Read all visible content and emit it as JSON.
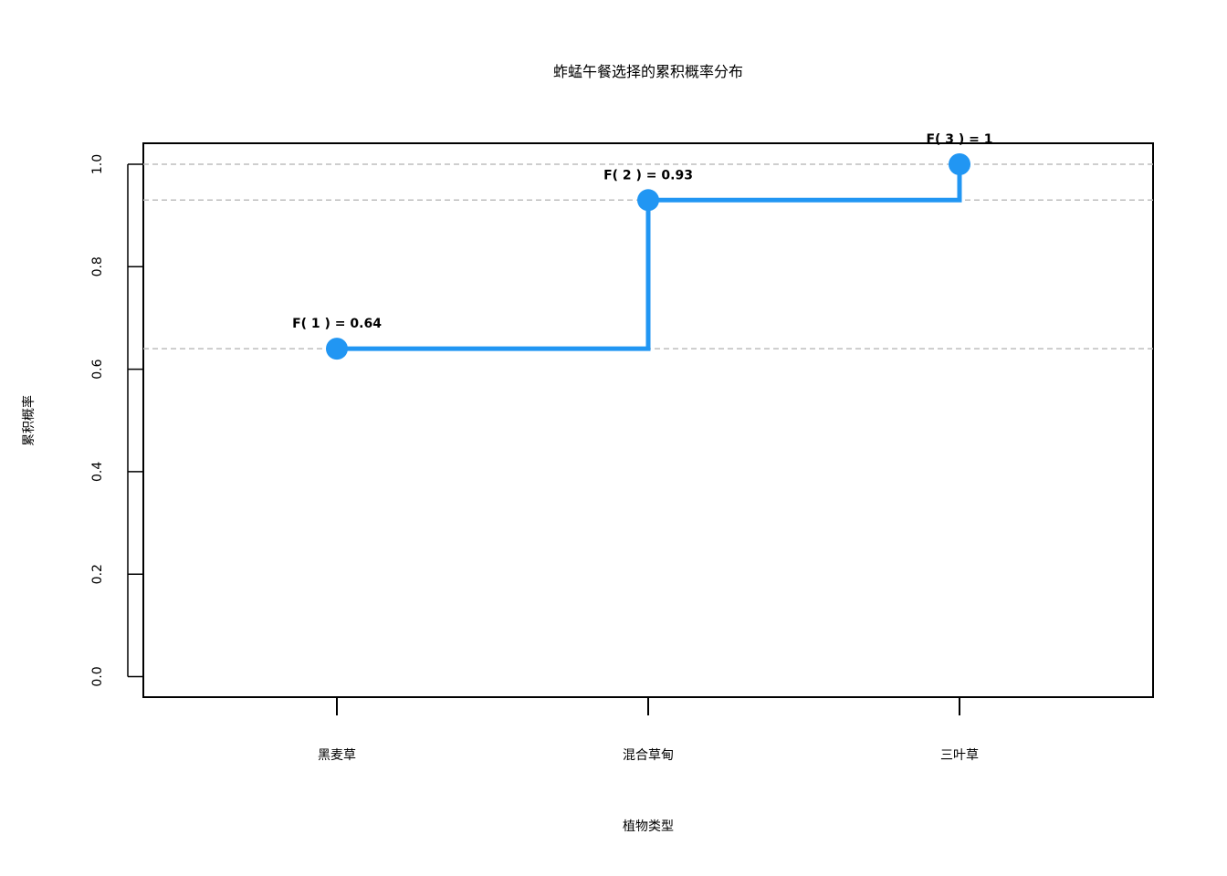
{
  "chart_data": {
    "type": "line",
    "subtype": "step-cdf",
    "title": "蚱蜢午餐选择的累积概率分布",
    "xlabel": "植物类型",
    "ylabel": "累积概率",
    "categories": [
      "黑麦草",
      "混合草甸",
      "三叶草"
    ],
    "values": [
      0.64,
      0.93,
      1.0
    ],
    "data_labels": [
      "F( 1 ) = 0.64",
      "F( 2 ) = 0.93",
      "F( 3 ) = 1"
    ],
    "ylim": [
      0,
      1.0
    ],
    "yticks": [
      0.0,
      0.2,
      0.4,
      0.6,
      0.8,
      1.0
    ],
    "ytick_labels": [
      "0.0",
      "0.2",
      "0.4",
      "0.6",
      "0.8",
      "1.0"
    ],
    "reference_lines": [
      0.64,
      0.93,
      1.0
    ],
    "grid": false,
    "colors": {
      "series": "#2196F3",
      "reference": "#BEBEBE",
      "axis": "#000000"
    }
  }
}
